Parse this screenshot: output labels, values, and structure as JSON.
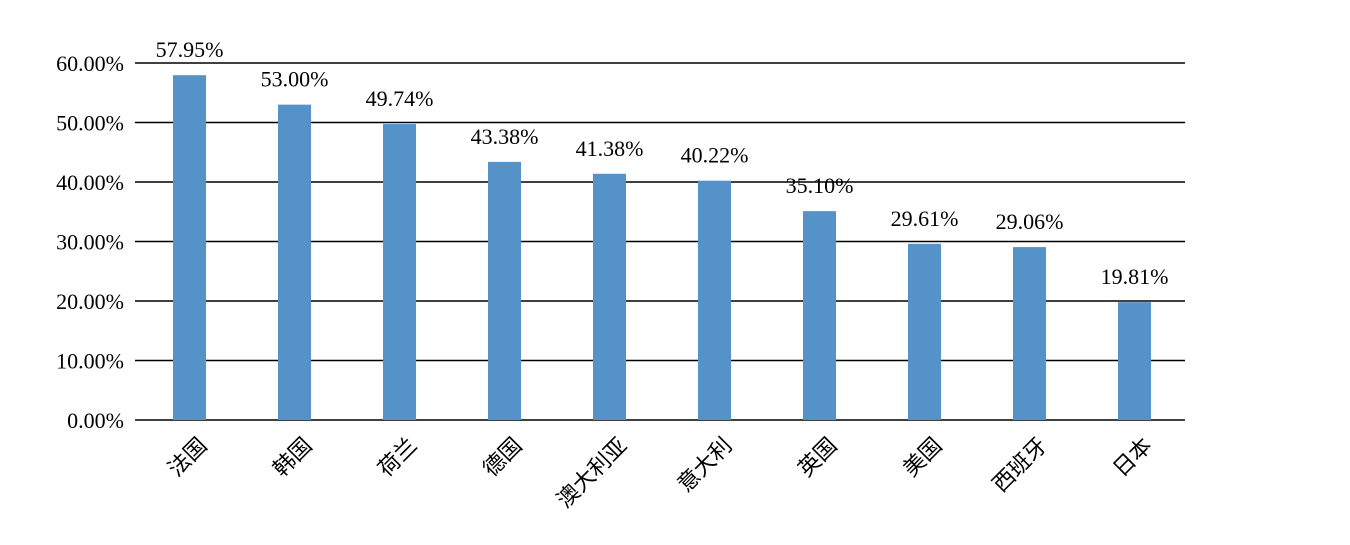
{
  "chart_data": {
    "type": "bar",
    "title": "",
    "xlabel": "",
    "ylabel": "",
    "categories": [
      "法国",
      "韩国",
      "荷兰",
      "德国",
      "澳大利亚",
      "意大利",
      "英国",
      "美国",
      "西班牙",
      "日本"
    ],
    "values": [
      57.95,
      53.0,
      49.74,
      43.38,
      41.38,
      40.22,
      35.1,
      29.61,
      29.06,
      19.81
    ],
    "data_labels": [
      "57.95%",
      "53.00%",
      "49.74%",
      "43.38%",
      "41.38%",
      "40.22%",
      "35.10%",
      "29.61%",
      "29.06%",
      "19.81%"
    ],
    "y_ticks": [
      0,
      10,
      20,
      30,
      40,
      50,
      60
    ],
    "y_tick_labels": [
      "0.00%",
      "10.00%",
      "20.00%",
      "30.00%",
      "40.00%",
      "50.00%",
      "60.00%"
    ],
    "ylim": [
      0,
      60
    ],
    "grid": true,
    "legend": "none",
    "colors": {
      "bar": "#5592C8",
      "grid": "#000000",
      "text": "#000000"
    }
  }
}
